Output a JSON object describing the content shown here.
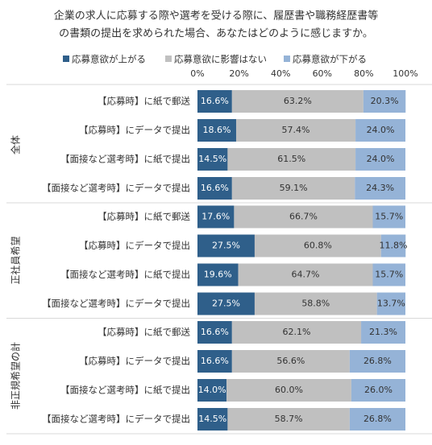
{
  "chart_data": {
    "type": "stacked-bar-horizontal",
    "title_lines": [
      "企業の求人に応募する際や選考を受ける際に、履歴書や職務経歴書等",
      "の書類の提出を求められた場合、あなたはどのように感じますか。"
    ],
    "groups": [
      "全体",
      "正社員希望",
      "非正規希望の計"
    ],
    "categories": [
      "【応募時】に紙で郵送",
      "【応募時】にデータで提出",
      "【面接など選考時】に紙で提出",
      "【面接など選考時】にデータで提出",
      "【応募時】に紙で郵送",
      "【応募時】にデータで提出",
      "【面接など選考時】に紙で提出",
      "【面接など選考時】にデータで提出",
      "【応募時】に紙で郵送",
      "【応募時】にデータで提出",
      "【面接など選考時】に紙で提出",
      "【面接など選考時】にデータで提出"
    ],
    "series": [
      {
        "name": "応募意欲が上がる",
        "color": "#2f5f8a",
        "label_color": "#ffffff",
        "values": [
          16.6,
          18.6,
          14.5,
          16.6,
          17.6,
          27.5,
          19.6,
          27.5,
          16.6,
          16.6,
          14.0,
          14.5
        ],
        "value_labels": [
          "16.6%",
          "18.6%",
          "14.5%",
          "16.6%",
          "17.6%",
          "27.5%",
          "19.6%",
          "27.5%",
          "16.6%",
          "16.6%",
          "14.0%",
          "14.5%"
        ]
      },
      {
        "name": "応募意欲に影響はない",
        "color": "#c0c0c0",
        "label_color": "#333333",
        "values": [
          63.2,
          57.4,
          61.5,
          59.1,
          66.7,
          60.8,
          64.7,
          58.8,
          62.1,
          56.6,
          60.0,
          58.7
        ],
        "value_labels": [
          "63.2%",
          "57.4%",
          "61.5%",
          "59.1%",
          "66.7%",
          "60.8%",
          "64.7%",
          "58.8%",
          "62.1%",
          "56.6%",
          "60.0%",
          "58.7%"
        ]
      },
      {
        "name": "応募意欲が下がる",
        "color": "#95b3d7",
        "label_color": "#333333",
        "values": [
          20.3,
          24.0,
          24.0,
          24.3,
          15.7,
          11.8,
          15.7,
          13.7,
          21.3,
          26.8,
          26.0,
          26.8
        ],
        "value_labels": [
          "20.3%",
          "24.0%",
          "24.0%",
          "24.3%",
          "15.7%",
          "11.8%",
          "15.7%",
          "13.7%",
          "21.3%",
          "26.8%",
          "26.0%",
          "26.8%"
        ]
      }
    ],
    "xlim": [
      0,
      100
    ],
    "xticks": [
      {
        "value": 0,
        "label": "0%"
      },
      {
        "value": 20,
        "label": "20%"
      },
      {
        "value": 40,
        "label": "40%"
      },
      {
        "value": 60,
        "label": "60%"
      },
      {
        "value": 80,
        "label": "80%"
      },
      {
        "value": 100,
        "label": "100%"
      }
    ]
  }
}
